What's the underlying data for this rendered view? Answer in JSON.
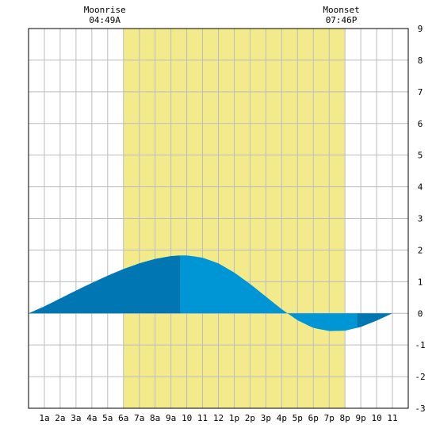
{
  "chart_data": {
    "type": "area",
    "xlim": [
      0,
      24
    ],
    "ylim": [
      -3,
      9
    ],
    "x_tick_labels": [
      "1a",
      "2a",
      "3a",
      "4a",
      "5a",
      "6a",
      "7a",
      "8a",
      "9a",
      "10",
      "11",
      "12",
      "1p",
      "2p",
      "3p",
      "4p",
      "5p",
      "6p",
      "7p",
      "8p",
      "9p",
      "10",
      "11"
    ],
    "y_ticks": [
      -3,
      -2,
      -1,
      0,
      1,
      2,
      3,
      4,
      5,
      6,
      7,
      8,
      9
    ],
    "grid": true,
    "moon": {
      "rise_label": "Moonrise",
      "rise_time": "04:49A",
      "rise_hour": 4.82,
      "set_label": "Moonset",
      "set_time": "07:46P",
      "set_hour": 19.77,
      "shade_start_hour": 6,
      "shade_end_hour": 20,
      "shade_color": "#f3eb8b"
    },
    "tide": {
      "points": [
        [
          0,
          0.0
        ],
        [
          1,
          0.22
        ],
        [
          2,
          0.47
        ],
        [
          3,
          0.72
        ],
        [
          4,
          0.96
        ],
        [
          5,
          1.19
        ],
        [
          6,
          1.4
        ],
        [
          7,
          1.58
        ],
        [
          8,
          1.72
        ],
        [
          9,
          1.81
        ],
        [
          9.6,
          1.83
        ],
        [
          10,
          1.83
        ],
        [
          11,
          1.76
        ],
        [
          12,
          1.58
        ],
        [
          13,
          1.29
        ],
        [
          14,
          0.93
        ],
        [
          15,
          0.53
        ],
        [
          16,
          0.13
        ],
        [
          17,
          -0.22
        ],
        [
          18,
          -0.46
        ],
        [
          19,
          -0.56
        ],
        [
          20,
          -0.55
        ],
        [
          21,
          -0.43
        ],
        [
          22,
          -0.23
        ],
        [
          23,
          0.0
        ],
        [
          24,
          0.0
        ]
      ],
      "segments": [
        {
          "from": 0,
          "to": 9.6,
          "color": "#0077b3"
        },
        {
          "from": 9.6,
          "to": 20.75,
          "color": "#0096d6"
        },
        {
          "from": 20.75,
          "to": 24,
          "color": "#0077b3"
        }
      ]
    }
  }
}
